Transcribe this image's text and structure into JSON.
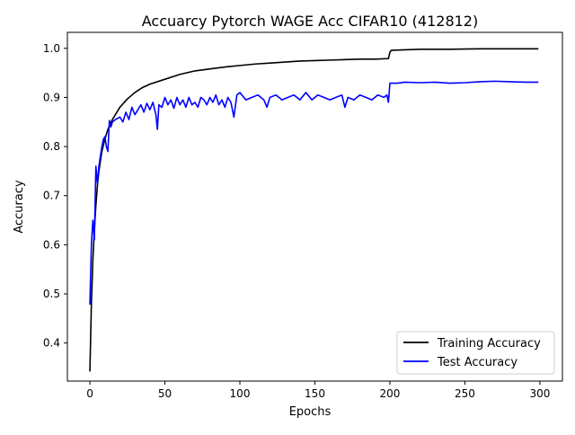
{
  "chart_data": {
    "type": "line",
    "title": "Accuarcy Pytorch WAGE Acc CIFAR10 (412812)",
    "xlabel": "Epochs",
    "ylabel": "Accuracy",
    "xlim": [
      -15,
      315
    ],
    "ylim": [
      0.3225,
      1.0325
    ],
    "xticks": [
      0,
      50,
      100,
      150,
      200,
      250,
      300
    ],
    "yticks": [
      0.4,
      0.5,
      0.6,
      0.7,
      0.8,
      0.9,
      1.0
    ],
    "ytick_labels": [
      "0.4",
      "0.5",
      "0.6",
      "0.7",
      "0.8",
      "0.9",
      "1.0"
    ],
    "grid": false,
    "legend_position": "lower-right",
    "series": [
      {
        "name": "Training Accuracy",
        "color": "#000000",
        "x": [
          0,
          1,
          2,
          3,
          4,
          5,
          6,
          8,
          10,
          12,
          15,
          20,
          25,
          30,
          35,
          40,
          50,
          60,
          70,
          80,
          90,
          100,
          110,
          120,
          130,
          140,
          150,
          160,
          170,
          180,
          190,
          198,
          199,
          200,
          201,
          210,
          220,
          240,
          260,
          280,
          299
        ],
        "y": [
          0.342,
          0.48,
          0.57,
          0.63,
          0.68,
          0.72,
          0.75,
          0.79,
          0.815,
          0.835,
          0.855,
          0.88,
          0.897,
          0.91,
          0.92,
          0.927,
          0.937,
          0.947,
          0.954,
          0.958,
          0.962,
          0.965,
          0.968,
          0.97,
          0.972,
          0.974,
          0.975,
          0.976,
          0.977,
          0.978,
          0.978,
          0.979,
          0.979,
          0.992,
          0.996,
          0.997,
          0.998,
          0.998,
          0.999,
          0.999,
          0.999
        ]
      },
      {
        "name": "Test Accuracy",
        "color": "#0000ff",
        "x": [
          0,
          1,
          2,
          3,
          4,
          5,
          6,
          7,
          8,
          9,
          10,
          11,
          12,
          13,
          14,
          15,
          17,
          20,
          22,
          24,
          26,
          28,
          30,
          32,
          34,
          36,
          38,
          40,
          42,
          44,
          45,
          46,
          48,
          50,
          52,
          54,
          56,
          58,
          60,
          62,
          64,
          66,
          68,
          70,
          72,
          74,
          76,
          78,
          80,
          82,
          84,
          86,
          88,
          90,
          92,
          94,
          96,
          98,
          100,
          104,
          108,
          112,
          116,
          118,
          120,
          124,
          128,
          132,
          136,
          140,
          144,
          148,
          152,
          156,
          160,
          164,
          168,
          170,
          172,
          176,
          180,
          184,
          188,
          192,
          196,
          198,
          199,
          200,
          205,
          210,
          220,
          230,
          240,
          250,
          260,
          270,
          280,
          290,
          299
        ],
        "y": [
          0.478,
          0.6,
          0.65,
          0.61,
          0.76,
          0.725,
          0.76,
          0.78,
          0.8,
          0.815,
          0.82,
          0.8,
          0.79,
          0.853,
          0.84,
          0.85,
          0.855,
          0.86,
          0.85,
          0.87,
          0.855,
          0.88,
          0.865,
          0.875,
          0.885,
          0.87,
          0.888,
          0.875,
          0.89,
          0.865,
          0.835,
          0.885,
          0.88,
          0.9,
          0.885,
          0.895,
          0.878,
          0.9,
          0.885,
          0.895,
          0.88,
          0.9,
          0.885,
          0.89,
          0.88,
          0.9,
          0.895,
          0.885,
          0.9,
          0.89,
          0.905,
          0.885,
          0.895,
          0.88,
          0.9,
          0.89,
          0.86,
          0.905,
          0.91,
          0.895,
          0.9,
          0.905,
          0.895,
          0.88,
          0.9,
          0.905,
          0.895,
          0.9,
          0.905,
          0.895,
          0.91,
          0.895,
          0.905,
          0.9,
          0.895,
          0.9,
          0.905,
          0.88,
          0.9,
          0.895,
          0.905,
          0.9,
          0.895,
          0.905,
          0.9,
          0.905,
          0.89,
          0.929,
          0.929,
          0.931,
          0.93,
          0.931,
          0.929,
          0.93,
          0.932,
          0.933,
          0.932,
          0.931,
          0.931
        ]
      }
    ]
  }
}
